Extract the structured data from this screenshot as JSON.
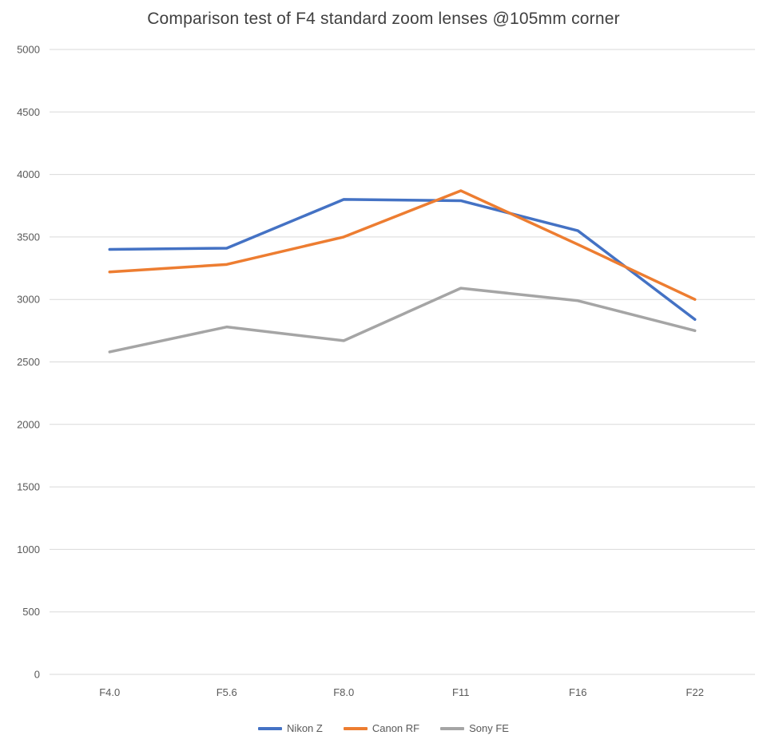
{
  "chart_data": {
    "type": "line",
    "title": "Comparison test of F4 standard zoom lenses @105mm corner",
    "categories": [
      "F4.0",
      "F5.6",
      "F8.0",
      "F11",
      "F16",
      "F22"
    ],
    "series": [
      {
        "name": "Nikon Z",
        "color": "#4472C4",
        "values": [
          3400,
          3410,
          3800,
          3790,
          3550,
          2840
        ]
      },
      {
        "name": "Canon RF",
        "color": "#ED7D31",
        "values": [
          3220,
          3280,
          3500,
          3870,
          3440,
          3000
        ]
      },
      {
        "name": "Sony FE",
        "color": "#A5A5A5",
        "values": [
          2580,
          2780,
          2670,
          3090,
          2990,
          2750
        ]
      }
    ],
    "xlabel": "",
    "ylabel": "",
    "ylim": [
      0,
      5000
    ],
    "ytick_step": 500,
    "grid": true,
    "gridline_color": "#D9D9D9",
    "legend_position": "bottom",
    "line_width": 3.5
  }
}
